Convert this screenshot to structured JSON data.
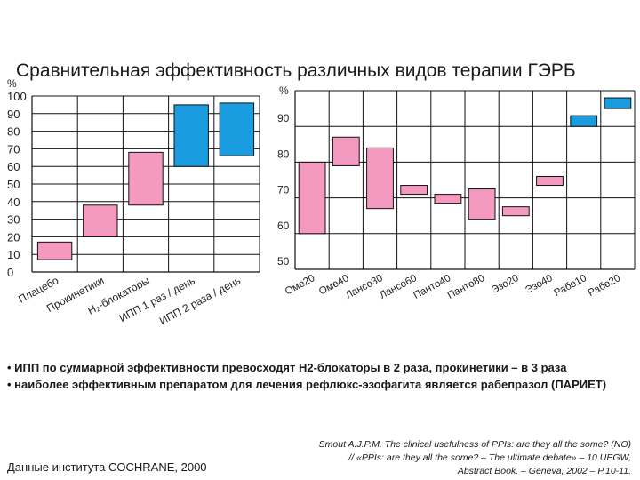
{
  "title": "Сравнительная эффективность различных видов терапии ГЭРБ",
  "colors": {
    "pink": "#f49ac1",
    "blue": "#1a9de0",
    "axis": "#111111"
  },
  "chart_data": [
    {
      "type": "bar",
      "ylabel": "%",
      "ylim": [
        0,
        100
      ],
      "yticks": [
        "100",
        "90",
        "80",
        "70",
        "60",
        "50",
        "40",
        "30",
        "20",
        "10",
        "0"
      ],
      "grid": true,
      "categories": [
        "Плацебо",
        "Прокинетики",
        "H₂-блокаторы",
        "ИПП 1 раз / день",
        "ИПП 2 раза / день"
      ],
      "ranges": [
        [
          7,
          17
        ],
        [
          20,
          38
        ],
        [
          38,
          68
        ],
        [
          60,
          95
        ],
        [
          66,
          96
        ]
      ],
      "colors": [
        "pink",
        "pink",
        "pink",
        "blue",
        "blue"
      ]
    },
    {
      "type": "bar",
      "ylabel": "%",
      "ylim": [
        50,
        100
      ],
      "yticks": [
        "90",
        "80",
        "70",
        "60",
        "50"
      ],
      "grid": true,
      "categories": [
        "Оме20",
        "Оме40",
        "Лансо30",
        "Лансо60",
        "Панто40",
        "Панто80",
        "Эзо20",
        "Эзо40",
        "Рабе10",
        "Рабе20"
      ],
      "ranges": [
        [
          60,
          80
        ],
        [
          79,
          87
        ],
        [
          67,
          84
        ],
        [
          71,
          73.5
        ],
        [
          68.5,
          71
        ],
        [
          64,
          72.5
        ],
        [
          65,
          67.5
        ],
        [
          73.5,
          76
        ],
        [
          90,
          93
        ],
        [
          95,
          98
        ]
      ],
      "colors": [
        "pink",
        "pink",
        "pink",
        "pink",
        "pink",
        "pink",
        "pink",
        "pink",
        "blue",
        "blue"
      ]
    }
  ],
  "bullets": [
    "• ИПП по суммарной эффективности превосходят Н2-блокаторы в 2 раза, прокинетики – в 3 раза",
    "• наиболее эффективным препаратом для лечения рефлюкс-эзофагита является рабепразол (ПАРИЕТ)"
  ],
  "source_left": "Данные института COCHRANE, 2000",
  "source_right": [
    "Smout A.J.P.M. The clinical usefulness of PPIs: are they all the some? (NO)",
    "// «PPIs: are they all the some? – The ultimate debate» – 10 UEGW,",
    "Abstract Book. – Geneva, 2002 – P.10-11."
  ]
}
